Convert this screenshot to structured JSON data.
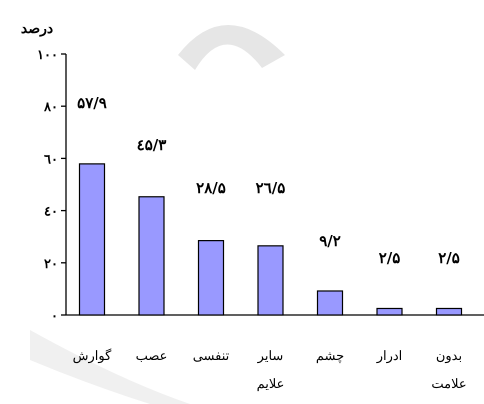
{
  "chart_data": {
    "type": "bar",
    "ylabel": "درصد",
    "ylim": [
      0,
      100
    ],
    "yticks": [
      {
        "value": 0,
        "label": "۰"
      },
      {
        "value": 20,
        "label": "۲۰"
      },
      {
        "value": 40,
        "label": "٤۰"
      },
      {
        "value": 60,
        "label": "٦۰"
      },
      {
        "value": 80,
        "label": "۸۰"
      },
      {
        "value": 100,
        "label": "۱۰۰"
      }
    ],
    "categories": [
      [
        "گوارش"
      ],
      [
        "عصب"
      ],
      [
        "تنفسی"
      ],
      [
        "سایر",
        "علایم"
      ],
      [
        "چشم"
      ],
      [
        "ادرار"
      ],
      [
        "بدون",
        "علامت"
      ]
    ],
    "values": [
      57.9,
      45.3,
      28.5,
      26.5,
      9.2,
      2.5,
      2.5
    ],
    "value_labels": [
      "۵۷/۹",
      "٤۵/۳",
      "۲۸/۵",
      "۲٦/۵",
      "۹/۲",
      "۲/۵",
      "۲/۵"
    ],
    "bar_color": "#9999ff",
    "grid": false,
    "legend": "none"
  },
  "colors": {
    "axis": "#000000",
    "bar_stroke": "#000000",
    "watermark": "#e8e8e8"
  }
}
